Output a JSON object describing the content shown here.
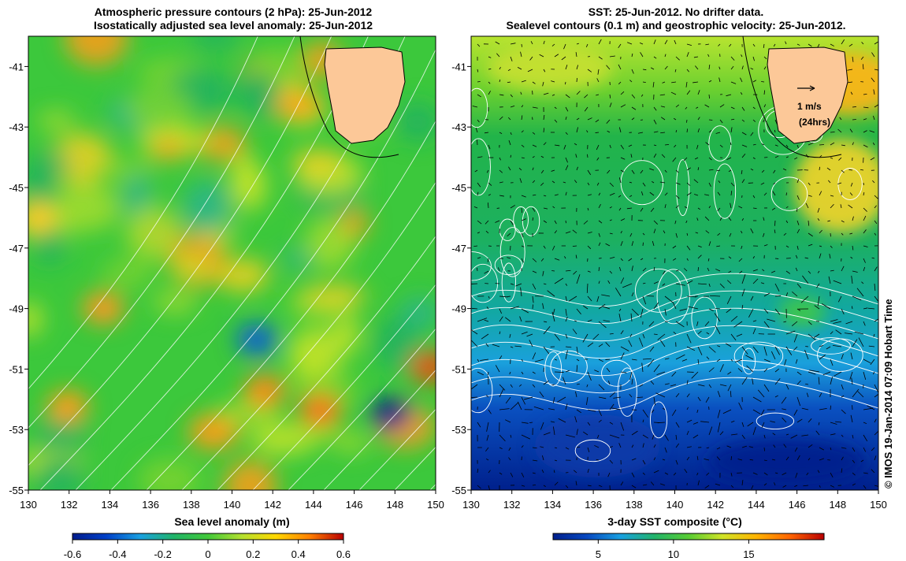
{
  "left_panel": {
    "title_line1": "Atmospheric pressure contours (2 hPa): 25-Jun-2012",
    "title_line2": "Isostatically adjusted sea level anomaly: 25-Jun-2012",
    "xlabel": "Sea level anomaly (m)",
    "colorbar_ticks": [
      "-0.6",
      "-0.4",
      "-0.2",
      "0",
      "0.2",
      "0.4",
      "0.6"
    ],
    "colorbar_range": [
      -0.6,
      0.6
    ]
  },
  "right_panel": {
    "title_line1": "SST: 25-Jun-2012. No drifter data.",
    "title_line2": "Sealevel contours (0.1 m) and geostrophic velocity: 25-Jun-2012.",
    "xlabel": "3-day SST composite (°C)",
    "colorbar_ticks": [
      "5",
      "10",
      "15"
    ],
    "colorbar_range": [
      2,
      20
    ],
    "velocity_scale_line1": "1 m/s",
    "velocity_scale_line2": "(24hrs)"
  },
  "axes": {
    "lon_ticks": [
      "130",
      "132",
      "134",
      "136",
      "138",
      "140",
      "142",
      "144",
      "146",
      "148",
      "150"
    ],
    "lat_ticks": [
      "-41",
      "-43",
      "-45",
      "-47",
      "-49",
      "-51",
      "-53",
      "-55"
    ],
    "lon_range": [
      130,
      150
    ],
    "lat_range": [
      -55,
      -40
    ]
  },
  "copyright": "© IMOS 19-Jan-2014 07:09 Hobart Time",
  "colors": {
    "land": "#fcc898",
    "sla_low": "#001c8c",
    "sla_mid": "#22b444",
    "sla_high": "#b80000",
    "sst_low": "#00208c",
    "sst_mid": "#1ec044",
    "sst_high": "#b80000"
  }
}
